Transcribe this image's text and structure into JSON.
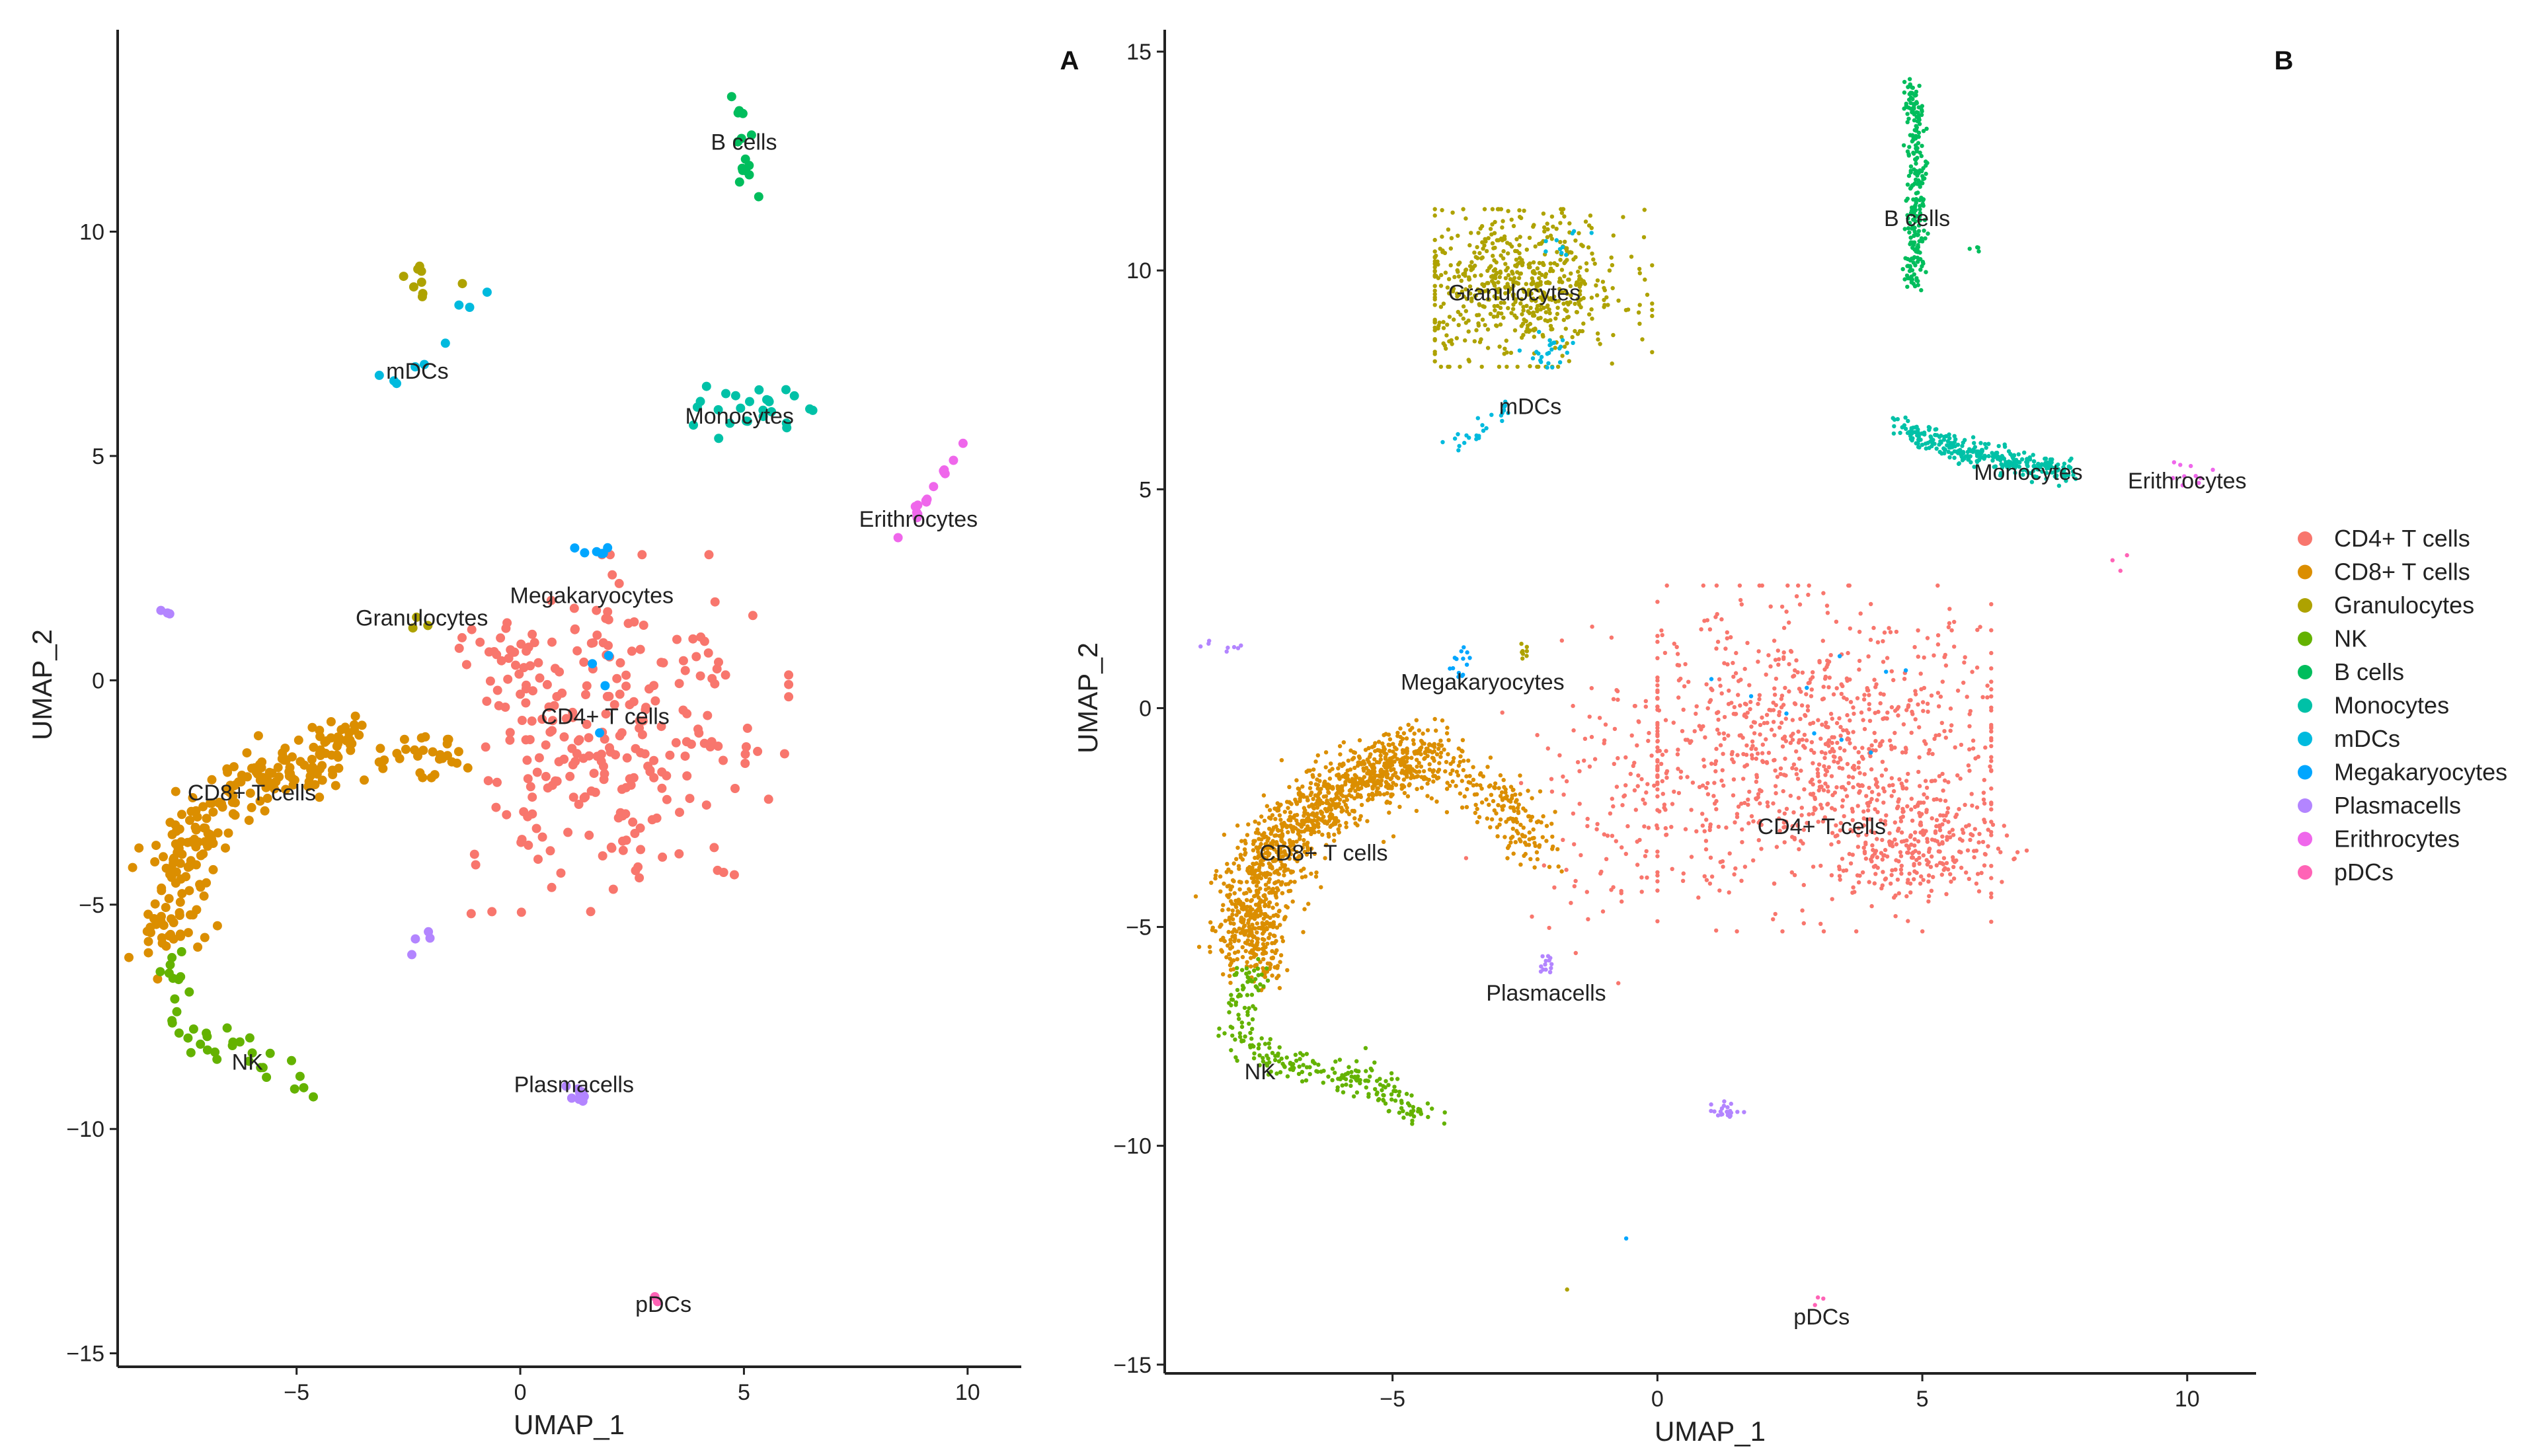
{
  "chart_data": [
    {
      "type": "scatter",
      "panel_label": "A",
      "xlabel": "UMAP_1",
      "ylabel": "UMAP_2",
      "xlim": [
        -9,
        11.2
      ],
      "ylim": [
        -15.3,
        14.5
      ],
      "xticks": [
        -5,
        0,
        5,
        10
      ],
      "yticks": [
        -15,
        -10,
        -5,
        0,
        5,
        10
      ],
      "cluster_labels": [
        {
          "text": "B cells",
          "x": 5,
          "y": 12
        },
        {
          "text": "mDCs",
          "x": -2.3,
          "y": 6.9
        },
        {
          "text": "Monocytes",
          "x": 4.9,
          "y": 5.9
        },
        {
          "text": "Erithrocytes",
          "x": 8.9,
          "y": 3.6
        },
        {
          "text": "Megakaryocytes",
          "x": 1.6,
          "y": 1.9
        },
        {
          "text": "Granulocytes",
          "x": -2.2,
          "y": 1.4
        },
        {
          "text": "CD4+ T cells",
          "x": 1.9,
          "y": -0.8
        },
        {
          "text": "CD8+ T cells",
          "x": -6,
          "y": -2.5
        },
        {
          "text": "NK",
          "x": -6.1,
          "y": -8.5
        },
        {
          "text": "Plasmacells",
          "x": 1.2,
          "y": -9
        },
        {
          "text": "pDCs",
          "x": 3.2,
          "y": -13.9
        }
      ]
    },
    {
      "type": "scatter",
      "panel_label": "B",
      "xlabel": "UMAP_1",
      "ylabel": "UMAP_2",
      "xlim": [
        -9.3,
        11.3
      ],
      "ylim": [
        -15.2,
        15.5
      ],
      "xticks": [
        -5,
        0,
        5,
        10
      ],
      "yticks": [
        -15,
        -10,
        -5,
        0,
        5,
        10,
        15
      ],
      "cluster_labels": [
        {
          "text": "B cells",
          "x": 4.9,
          "y": 11.2
        },
        {
          "text": "Granulocytes",
          "x": -2.7,
          "y": 9.5
        },
        {
          "text": "mDCs",
          "x": -2.4,
          "y": 6.9
        },
        {
          "text": "Monocytes",
          "x": 7,
          "y": 5.4
        },
        {
          "text": "Erithrocytes",
          "x": 10,
          "y": 5.2
        },
        {
          "text": "Megakaryocytes",
          "x": -3.3,
          "y": 0.6
        },
        {
          "text": "CD4+ T cells",
          "x": 3.1,
          "y": -2.7
        },
        {
          "text": "CD8+ T cells",
          "x": -6.3,
          "y": -3.3
        },
        {
          "text": "Plasmacells",
          "x": -2.1,
          "y": -6.5
        },
        {
          "text": "NK",
          "x": -7.5,
          "y": -8.3
        },
        {
          "text": "pDCs",
          "x": 3.1,
          "y": -13.9
        }
      ]
    }
  ],
  "legend": [
    {
      "label": "CD4+ T cells",
      "color": "#F8766D"
    },
    {
      "label": "CD8+ T cells",
      "color": "#DB8E00"
    },
    {
      "label": "Granulocytes",
      "color": "#AEA200"
    },
    {
      "label": "NK",
      "color": "#64B200"
    },
    {
      "label": "B cells",
      "color": "#00BD5C"
    },
    {
      "label": "Monocytes",
      "color": "#00C1A7"
    },
    {
      "label": "mDCs",
      "color": "#00BADE"
    },
    {
      "label": "Megakaryocytes",
      "color": "#00A6FF"
    },
    {
      "label": "Plasmacells",
      "color": "#B385FF"
    },
    {
      "label": "Erithrocytes",
      "color": "#EF67EB"
    },
    {
      "label": "pDCs",
      "color": "#FF63B6"
    }
  ]
}
